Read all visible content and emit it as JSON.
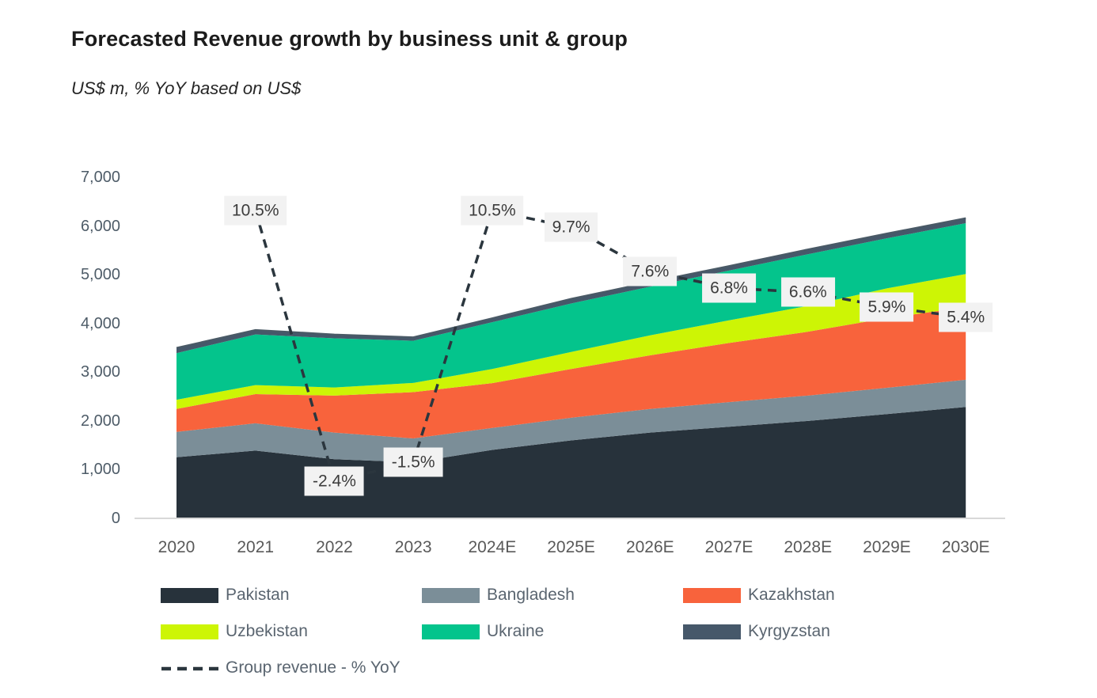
{
  "header": {
    "title": "Forecasted Revenue growth by business unit & group",
    "subtitle": "US$ m, % YoY based on US$"
  },
  "colors": {
    "pakistan": "#27323b",
    "bangladesh": "#7b8e98",
    "kazakhstan": "#f8633c",
    "uzbekistan": "#cdf505",
    "ukraine": "#04c48c",
    "kyrgyzstan": "#46586a",
    "yoy_line": "#2b363e",
    "label_chip_bg": "#f2f2f2",
    "label_chip_text": "#3c3c3c",
    "axis_line": "#d8d8d8",
    "stack_top_stroke": "#4a5a66"
  },
  "chart_data": {
    "type": "area",
    "stacked": true,
    "grid": false,
    "legend_position": "bottom",
    "title": "Forecasted Revenue growth by business unit & group",
    "subtitle": "US$ m, % YoY based on US$",
    "categories": [
      "2020",
      "2021",
      "2022",
      "2023",
      "2024E",
      "2025E",
      "2026E",
      "2027E",
      "2028E",
      "2029E",
      "2030E"
    ],
    "y_axis": {
      "min": 0,
      "max": 7000,
      "tick_step": 1000,
      "tick_labels": [
        "0",
        "1,000",
        "2,000",
        "3,000",
        "4,000",
        "5,000",
        "6,000",
        "7,000"
      ]
    },
    "series": [
      {
        "name": "Pakistan",
        "color": "#27323b",
        "values": [
          1255,
          1390,
          1215,
          1150,
          1405,
          1600,
          1760,
          1880,
          2000,
          2140,
          2285
        ]
      },
      {
        "name": "Bangladesh",
        "color": "#7b8e98",
        "values": [
          520,
          560,
          545,
          490,
          450,
          465,
          485,
          505,
          520,
          540,
          560
        ]
      },
      {
        "name": "Kazakhstan",
        "color": "#f8633c",
        "values": [
          470,
          600,
          760,
          950,
          920,
          1000,
          1100,
          1215,
          1310,
          1430,
          1490
        ]
      },
      {
        "name": "Uzbekistan",
        "color": "#cdf505",
        "values": [
          190,
          185,
          165,
          190,
          290,
          350,
          410,
          465,
          530,
          610,
          680
        ]
      },
      {
        "name": "Ukraine",
        "color": "#04c48c",
        "values": [
          955,
          1040,
          1010,
          865,
          960,
          995,
          1000,
          1020,
          1060,
          1027,
          1043
        ]
      },
      {
        "name": "Kyrgyzstan",
        "color": "#46586a",
        "values": [
          110,
          93,
          80,
          73,
          83,
          97,
          94,
          94,
          101,
          100,
          104
        ]
      }
    ],
    "totals": [
      3500,
      3868,
      3775,
      3718,
      4108,
      4507,
      4849,
      5179,
      5521,
      5847,
      6162
    ],
    "yoy_line": {
      "name": "Group revenue - % YoY",
      "points": [
        {
          "year": "2021",
          "value": 10.5,
          "label": "10.5%"
        },
        {
          "year": "2022",
          "value": -2.4,
          "label": "-2.4%"
        },
        {
          "year": "2023",
          "value": -1.5,
          "label": "-1.5%"
        },
        {
          "year": "2024E",
          "value": 10.5,
          "label": "10.5%"
        },
        {
          "year": "2025E",
          "value": 9.7,
          "label": "9.7%"
        },
        {
          "year": "2026E",
          "value": 7.6,
          "label": "7.6%"
        },
        {
          "year": "2027E",
          "value": 6.8,
          "label": "6.8%"
        },
        {
          "year": "2028E",
          "value": 6.6,
          "label": "6.6%"
        },
        {
          "year": "2029E",
          "value": 5.9,
          "label": "5.9%"
        },
        {
          "year": "2030E",
          "value": 5.4,
          "label": "5.4%"
        }
      ]
    }
  }
}
